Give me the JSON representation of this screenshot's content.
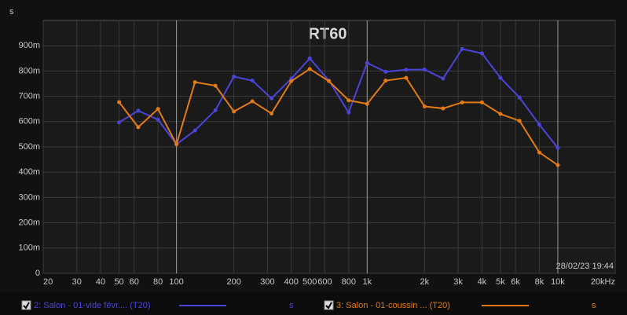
{
  "chart_data": {
    "type": "line",
    "title": "RT60",
    "y_label": "s",
    "timestamp": "28/02/23 19:44",
    "log_x": true,
    "grid": true,
    "xlim": [
      20,
      20000
    ],
    "ylim": [
      0,
      1000
    ],
    "xticks": [
      20,
      30,
      40,
      50,
      60,
      80,
      100,
      200,
      300,
      400,
      500,
      600,
      800,
      {
        "value": 1000,
        "label": "1k"
      },
      {
        "value": 2000,
        "label": "2k"
      },
      {
        "value": 3000,
        "label": "3k"
      },
      {
        "value": 4000,
        "label": "4k"
      },
      {
        "value": 5000,
        "label": "5k"
      },
      {
        "value": 6000,
        "label": "6k"
      },
      {
        "value": 8000,
        "label": "8k"
      },
      {
        "value": 10000,
        "label": "10k"
      },
      {
        "value": 20000,
        "label": "20kHz"
      }
    ],
    "yticks": [
      0,
      {
        "value": 100,
        "label": "100m"
      },
      {
        "value": 200,
        "label": "200m"
      },
      {
        "value": 300,
        "label": "300m"
      },
      {
        "value": 400,
        "label": "400m"
      },
      {
        "value": 500,
        "label": "500m"
      },
      {
        "value": 600,
        "label": "600m"
      },
      {
        "value": 700,
        "label": "700m"
      },
      {
        "value": 800,
        "label": "800m"
      },
      {
        "value": 900,
        "label": "900m"
      }
    ],
    "x": [
      50,
      63,
      80,
      100,
      125,
      160,
      200,
      250,
      315,
      400,
      500,
      630,
      800,
      1000,
      1250,
      1600,
      2000,
      2500,
      3150,
      4000,
      5000,
      6300,
      8000,
      10000
    ],
    "series": [
      {
        "name": "2: Salon - 01-vide févr.... (T20)",
        "unit": "s",
        "color": "#4a45d8",
        "values": [
          597,
          643,
          608,
          510,
          565,
          645,
          778,
          762,
          692,
          770,
          850,
          762,
          636,
          832,
          797,
          805,
          806,
          770,
          887,
          870,
          773,
          695,
          588,
          496
        ]
      },
      {
        "name": "3: Salon - 01-coussin ... (T20)",
        "unit": "s",
        "color": "#e47a12",
        "values": [
          677,
          578,
          650,
          510,
          756,
          742,
          640,
          680,
          632,
          760,
          808,
          760,
          684,
          670,
          762,
          773,
          660,
          652,
          676,
          676,
          630,
          603,
          478,
          428
        ]
      }
    ]
  }
}
